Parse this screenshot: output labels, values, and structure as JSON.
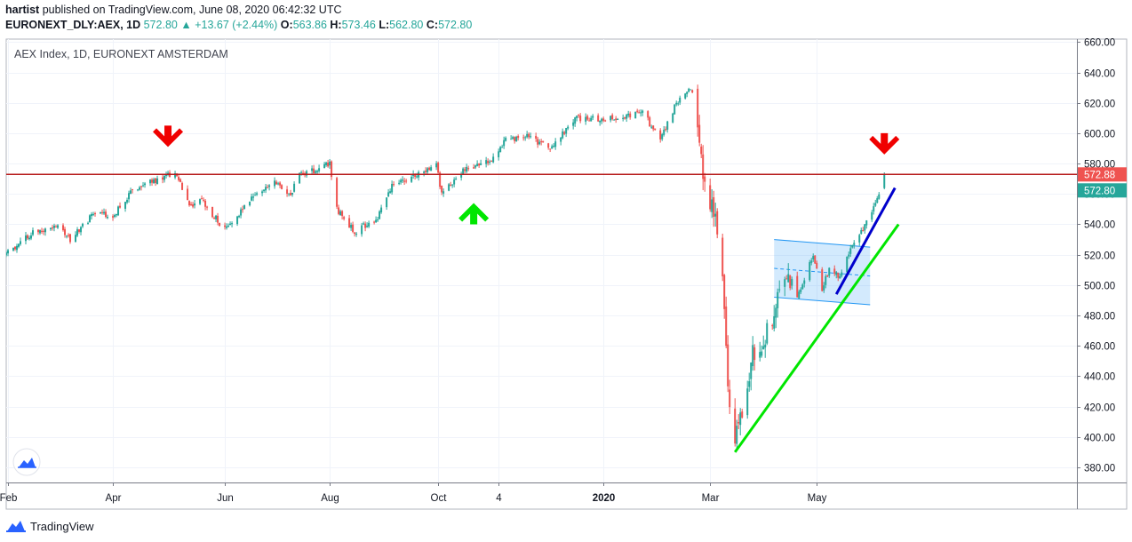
{
  "header": {
    "author": "hartist",
    "published_text": "published on TradingView.com, June 08, 2020 06:42:32 UTC",
    "symbol": "EURONEXT_DLY:AEX, 1D",
    "last": "572.80",
    "change_arrow": "▲",
    "change": "+13.67 (+2.44%)",
    "o_label": "O:",
    "o": "563.86",
    "h_label": "H:",
    "h": "573.46",
    "l_label": "L:",
    "l": "562.80",
    "c_label": "C:",
    "c": "572.80"
  },
  "footer": {
    "brand": "TradingView",
    "logo_icon": "tradingview-logo-icon"
  },
  "colors": {
    "up": "#26a69a",
    "down": "#ef5350",
    "resistance": "#b71c1c",
    "trend_green": "#00e600",
    "trend_blue": "#0000cc",
    "channel": "#2196f3",
    "arrow_red": "#f00000",
    "arrow_green": "#00e600"
  },
  "chart_data": {
    "type": "candlestick",
    "title": "AEX Index, 1D, EURONEXT AMSTERDAM",
    "ylim": [
      370,
      662
    ],
    "y_ticks": [
      380,
      400,
      420,
      440,
      460,
      480,
      500,
      520,
      540,
      560,
      580,
      600,
      620,
      640,
      660
    ],
    "y_tick_labels": [
      "380.00",
      "400.00",
      "420.00",
      "440.00",
      "460.00",
      "480.00",
      "500.00",
      "520.00",
      "540.00",
      "560.00",
      "580.00",
      "600.00",
      "620.00",
      "640.00",
      "660.00"
    ],
    "x_tick_labels": [
      "Feb",
      "Apr",
      "Jun",
      "Aug",
      "Oct",
      "4",
      "2020",
      "Mar",
      "May"
    ],
    "x_tick_dates": [
      "2019-02-01",
      "2019-04-01",
      "2019-06-03",
      "2019-08-01",
      "2019-10-01",
      "2019-11-04",
      "2020-01-02",
      "2020-03-02",
      "2020-05-01"
    ],
    "date_range": [
      "2019-01-31",
      "2020-06-08"
    ],
    "grid": true,
    "price_labels": [
      {
        "value": 572.88,
        "text": "572.88",
        "kind": "resistance"
      },
      {
        "value": 572.8,
        "text": "572.80",
        "kind": "last"
      }
    ],
    "resistance_level": 572.88,
    "price_path": [
      {
        "date": "2019-01-31",
        "close": 520
      },
      {
        "date": "2019-02-15",
        "close": 535
      },
      {
        "date": "2019-03-01",
        "close": 540
      },
      {
        "date": "2019-03-08",
        "close": 530
      },
      {
        "date": "2019-03-22",
        "close": 548
      },
      {
        "date": "2019-04-01",
        "close": 545
      },
      {
        "date": "2019-04-12",
        "close": 563
      },
      {
        "date": "2019-05-01",
        "close": 572
      },
      {
        "date": "2019-05-07",
        "close": 572
      },
      {
        "date": "2019-05-14",
        "close": 551
      },
      {
        "date": "2019-05-20",
        "close": 557
      },
      {
        "date": "2019-05-31",
        "close": 541
      },
      {
        "date": "2019-06-05",
        "close": 538
      },
      {
        "date": "2019-06-20",
        "close": 560
      },
      {
        "date": "2019-07-01",
        "close": 567
      },
      {
        "date": "2019-07-10",
        "close": 560
      },
      {
        "date": "2019-07-15",
        "close": 573
      },
      {
        "date": "2019-07-25",
        "close": 576
      },
      {
        "date": "2019-08-01",
        "close": 580
      },
      {
        "date": "2019-08-05",
        "close": 550
      },
      {
        "date": "2019-08-15",
        "close": 535
      },
      {
        "date": "2019-08-28",
        "close": 545
      },
      {
        "date": "2019-09-05",
        "close": 565
      },
      {
        "date": "2019-09-20",
        "close": 573
      },
      {
        "date": "2019-09-30",
        "close": 579
      },
      {
        "date": "2019-10-03",
        "close": 560
      },
      {
        "date": "2019-10-15",
        "close": 576
      },
      {
        "date": "2019-10-31",
        "close": 583
      },
      {
        "date": "2019-11-08",
        "close": 596
      },
      {
        "date": "2019-11-20",
        "close": 598
      },
      {
        "date": "2019-12-03",
        "close": 590
      },
      {
        "date": "2019-12-18",
        "close": 610
      },
      {
        "date": "2020-01-02",
        "close": 609
      },
      {
        "date": "2020-01-10",
        "close": 610
      },
      {
        "date": "2020-01-24",
        "close": 614
      },
      {
        "date": "2020-02-03",
        "close": 595
      },
      {
        "date": "2020-02-12",
        "close": 620
      },
      {
        "date": "2020-02-19",
        "close": 630
      },
      {
        "date": "2020-02-21",
        "close": 628
      },
      {
        "date": "2020-02-24",
        "close": 608
      },
      {
        "date": "2020-02-28",
        "close": 565
      },
      {
        "date": "2020-03-05",
        "close": 545
      },
      {
        "date": "2020-03-06",
        "close": 530
      },
      {
        "date": "2020-03-09",
        "close": 505
      },
      {
        "date": "2020-03-12",
        "close": 435
      },
      {
        "date": "2020-03-16",
        "close": 392
      },
      {
        "date": "2020-03-18",
        "close": 410
      },
      {
        "date": "2020-03-24",
        "close": 435
      },
      {
        "date": "2020-03-26",
        "close": 455
      },
      {
        "date": "2020-04-02",
        "close": 465
      },
      {
        "date": "2020-04-09",
        "close": 490
      },
      {
        "date": "2020-04-14",
        "close": 505
      },
      {
        "date": "2020-04-21",
        "close": 495
      },
      {
        "date": "2020-04-29",
        "close": 520
      },
      {
        "date": "2020-05-04",
        "close": 498
      },
      {
        "date": "2020-05-08",
        "close": 510
      },
      {
        "date": "2020-05-14",
        "close": 505
      },
      {
        "date": "2020-05-19",
        "close": 522
      },
      {
        "date": "2020-05-26",
        "close": 535
      },
      {
        "date": "2020-06-01",
        "close": 548
      },
      {
        "date": "2020-06-04",
        "close": 558
      },
      {
        "date": "2020-06-05",
        "close": 559
      },
      {
        "date": "2020-06-08",
        "close": 572.8
      }
    ],
    "annotations": {
      "down_arrows": [
        {
          "date": "2019-05-02",
          "price": 598
        },
        {
          "date": "2020-06-08",
          "price": 593
        }
      ],
      "up_arrows": [
        {
          "date": "2019-10-21",
          "price": 547
        }
      ],
      "green_trendline": [
        {
          "date": "2020-03-16",
          "price": 390
        },
        {
          "date": "2020-06-16",
          "price": 540
        }
      ],
      "blue_trendline": [
        {
          "date": "2020-05-12",
          "price": 494
        },
        {
          "date": "2020-06-14",
          "price": 564
        }
      ],
      "channel": {
        "start_date": "2020-04-07",
        "end_date": "2020-05-31",
        "top": [
          530,
          525
        ],
        "bottom": [
          492,
          487
        ]
      }
    }
  }
}
